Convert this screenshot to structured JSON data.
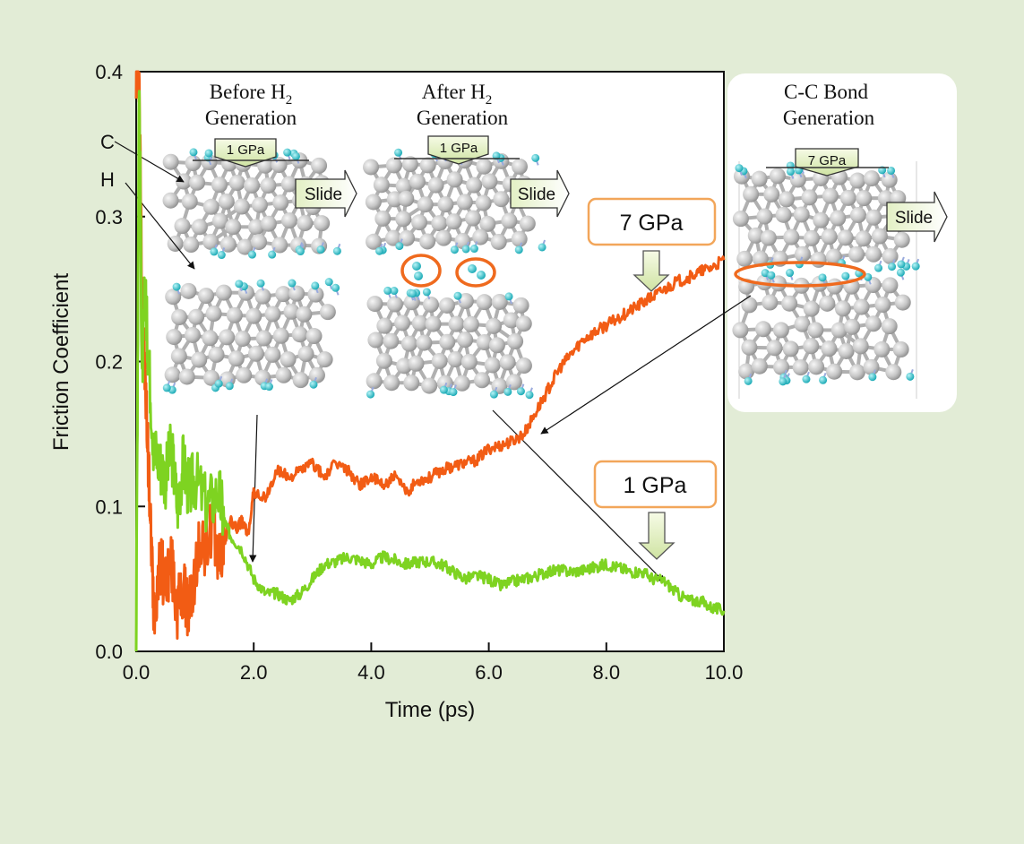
{
  "chart_data": {
    "type": "line",
    "xlabel": "Time (ps)",
    "ylabel": "Friction Coefficient",
    "xlim": [
      0,
      10
    ],
    "ylim": [
      0,
      0.4
    ],
    "x_ticks": [
      "0.0",
      "2.0",
      "4.0",
      "6.0",
      "8.0",
      "10.0"
    ],
    "y_ticks": [
      "0.0",
      "0.1",
      "0.2",
      "0.3",
      "0.4"
    ],
    "grid": false,
    "series": [
      {
        "name": "7 GPa",
        "color": "#f25c14",
        "x": [
          0.0,
          0.05,
          0.1,
          0.15,
          0.2,
          0.25,
          0.3,
          0.4,
          0.5,
          0.6,
          0.7,
          0.8,
          0.9,
          1.0,
          1.1,
          1.2,
          1.3,
          1.4,
          1.5,
          1.6,
          1.7,
          1.8,
          1.9,
          2.0,
          2.2,
          2.4,
          2.6,
          2.8,
          3.0,
          3.2,
          3.4,
          3.6,
          3.8,
          4.0,
          4.2,
          4.4,
          4.6,
          4.8,
          5.0,
          5.2,
          5.4,
          5.6,
          5.8,
          6.0,
          6.2,
          6.4,
          6.6,
          6.8,
          7.0,
          7.2,
          7.4,
          7.6,
          7.8,
          8.0,
          8.2,
          8.4,
          8.6,
          8.8,
          9.0,
          9.2,
          9.4,
          9.6,
          9.8,
          10.0
        ],
        "values": [
          0.4,
          0.4,
          0.24,
          0.19,
          0.14,
          0.08,
          0.03,
          0.06,
          0.05,
          0.06,
          0.03,
          0.04,
          0.03,
          0.05,
          0.08,
          0.07,
          0.09,
          0.065,
          0.075,
          0.09,
          0.085,
          0.09,
          0.08,
          0.11,
          0.105,
          0.125,
          0.12,
          0.125,
          0.13,
          0.12,
          0.13,
          0.125,
          0.115,
          0.12,
          0.115,
          0.12,
          0.11,
          0.118,
          0.12,
          0.125,
          0.128,
          0.13,
          0.132,
          0.14,
          0.142,
          0.145,
          0.15,
          0.165,
          0.18,
          0.195,
          0.205,
          0.215,
          0.22,
          0.225,
          0.23,
          0.235,
          0.24,
          0.245,
          0.25,
          0.255,
          0.258,
          0.262,
          0.265,
          0.27
        ]
      },
      {
        "name": "1 GPa",
        "color": "#7ed321",
        "x": [
          0.0,
          0.05,
          0.1,
          0.15,
          0.2,
          0.3,
          0.4,
          0.5,
          0.6,
          0.7,
          0.8,
          0.9,
          1.0,
          1.2,
          1.4,
          1.5,
          1.6,
          1.8,
          2.0,
          2.2,
          2.4,
          2.6,
          2.8,
          3.0,
          3.2,
          3.4,
          3.6,
          3.8,
          4.0,
          4.2,
          4.4,
          4.6,
          4.8,
          5.0,
          5.2,
          5.4,
          5.6,
          5.8,
          6.0,
          6.2,
          6.4,
          6.6,
          6.8,
          7.0,
          7.2,
          7.4,
          7.6,
          7.8,
          8.0,
          8.2,
          8.4,
          8.6,
          8.8,
          9.0,
          9.2,
          9.4,
          9.6,
          9.8,
          10.0
        ],
        "values": [
          0.0,
          0.4,
          0.19,
          0.25,
          0.21,
          0.14,
          0.13,
          0.12,
          0.14,
          0.1,
          0.13,
          0.11,
          0.12,
          0.1,
          0.11,
          0.09,
          0.08,
          0.07,
          0.05,
          0.04,
          0.04,
          0.035,
          0.04,
          0.05,
          0.06,
          0.062,
          0.065,
          0.063,
          0.06,
          0.065,
          0.063,
          0.06,
          0.062,
          0.062,
          0.06,
          0.055,
          0.05,
          0.052,
          0.05,
          0.045,
          0.048,
          0.05,
          0.052,
          0.055,
          0.056,
          0.055,
          0.056,
          0.058,
          0.06,
          0.058,
          0.055,
          0.055,
          0.05,
          0.048,
          0.04,
          0.035,
          0.035,
          0.03,
          0.028
        ]
      }
    ]
  },
  "callouts": {
    "high": "7 GPa",
    "low": "1 GPa"
  },
  "insets": {
    "before": {
      "title_line1": "Before H",
      "title_sub": "2",
      "title_line2": "Generation",
      "pressure": "1 GPa",
      "slide": "Slide",
      "label_c": "C",
      "label_h": "H"
    },
    "after": {
      "title_line1": "After H",
      "title_sub": "2",
      "title_line2": "Generation",
      "pressure": "1 GPa",
      "slide": "Slide"
    },
    "bond": {
      "title_line1": "C-C Bond",
      "title_line2": "Generation",
      "pressure": "7 GPa",
      "slide": "Slide"
    }
  },
  "colors": {
    "background": "#e2ecd6",
    "atom_gray": "#c9c9c9",
    "atom_cyan": "#29c4cf",
    "highlight": "#ef6a1e"
  }
}
